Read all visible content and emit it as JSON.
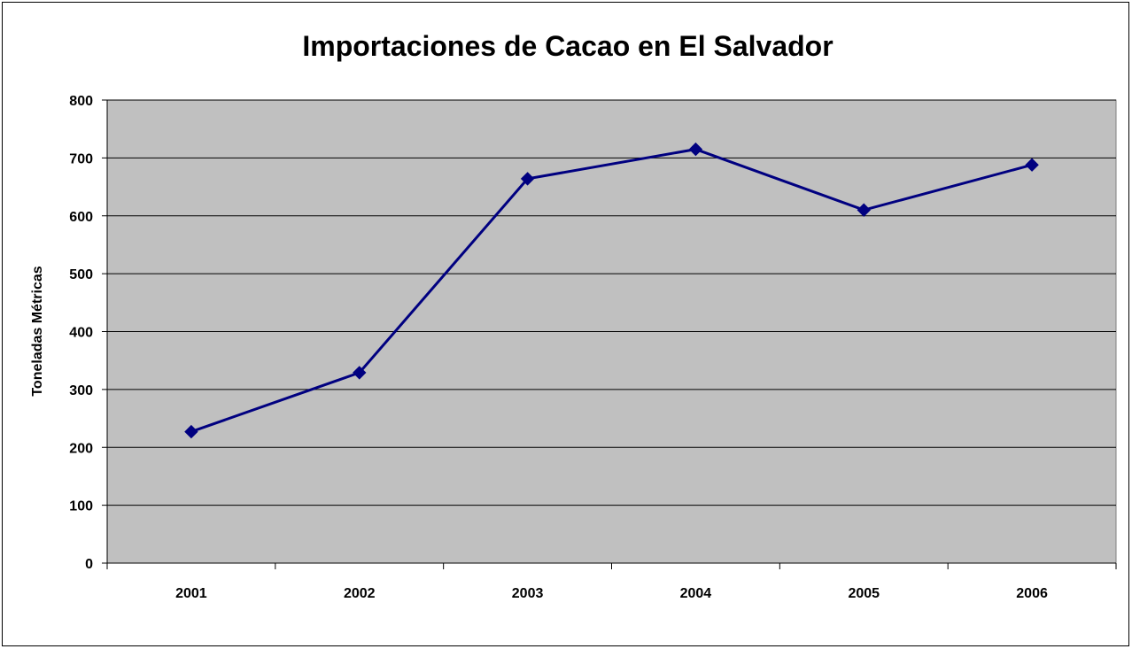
{
  "chart_data": {
    "type": "line",
    "title": "Importaciones de Cacao en El Salvador",
    "xlabel": "",
    "ylabel": "Toneladas Métricas",
    "categories": [
      "2001",
      "2002",
      "2003",
      "2004",
      "2005",
      "2006"
    ],
    "series": [
      {
        "values": [
          227,
          329,
          664,
          715,
          610,
          688
        ],
        "color": "#000080",
        "marker": "diamond"
      }
    ],
    "ylim": [
      0,
      800
    ],
    "yticks": [
      0,
      100,
      200,
      300,
      400,
      500,
      600,
      700,
      800
    ],
    "grid": true,
    "plot_background": "#C0C0C0",
    "legend": "none"
  }
}
